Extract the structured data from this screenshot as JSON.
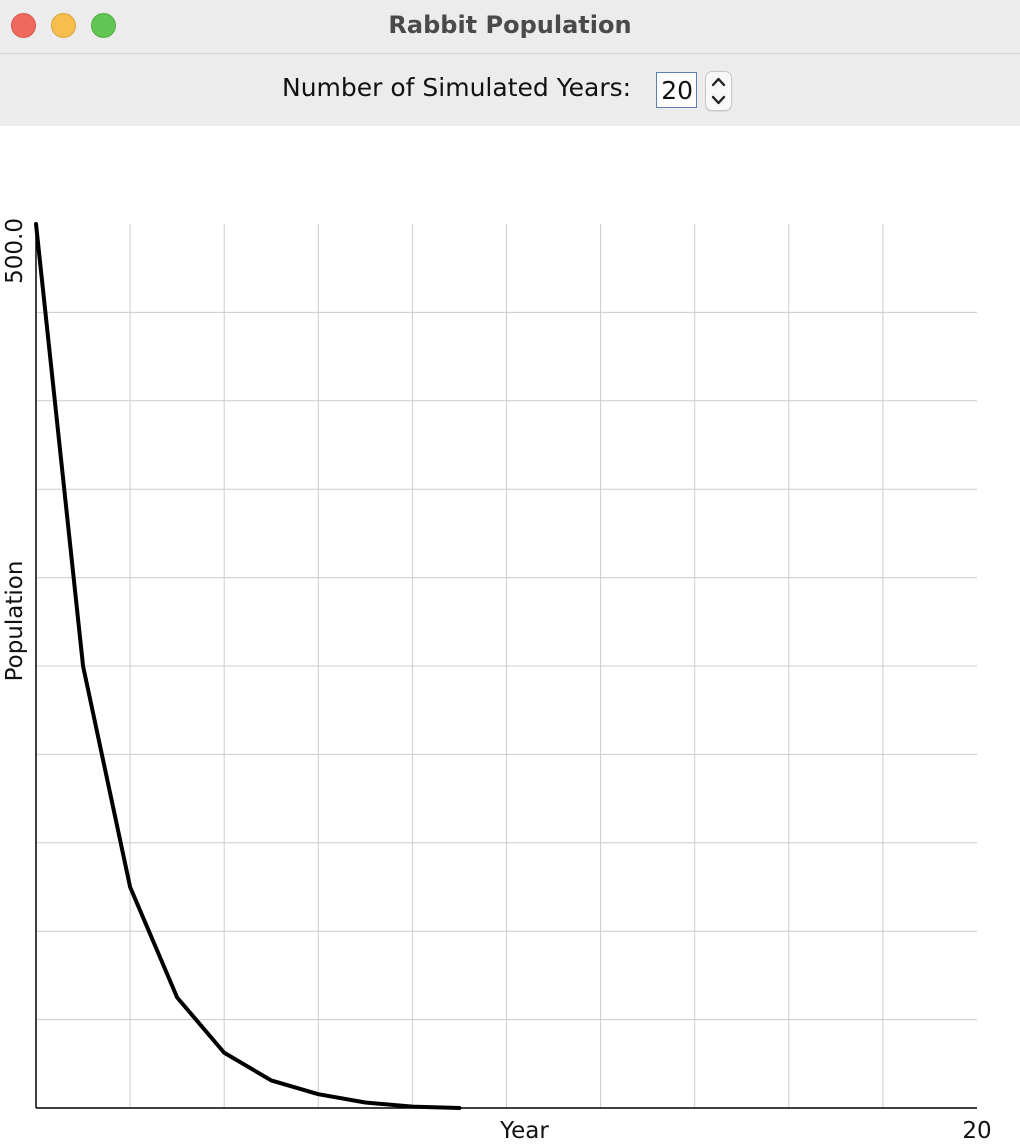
{
  "window": {
    "title": "Rabbit Population"
  },
  "controls": {
    "years_label": "Number of Simulated Years:",
    "years_value": "20"
  },
  "chart_data": {
    "type": "line",
    "xlabel": "Year",
    "ylabel": "Population",
    "ymax_label": "500.0",
    "xmax_label": "20",
    "xlim": [
      0,
      20
    ],
    "ylim": [
      0,
      500
    ],
    "grid": true,
    "x": [
      0,
      1,
      2,
      3,
      4,
      5,
      6,
      7,
      8,
      9
    ],
    "series": [
      {
        "values": [
          500,
          250,
          125,
          62.5,
          31.25,
          15.6,
          7.8,
          3.1,
          0.8,
          0
        ]
      }
    ],
    "line_color": "#000000",
    "grid_color": "#cccccc"
  }
}
